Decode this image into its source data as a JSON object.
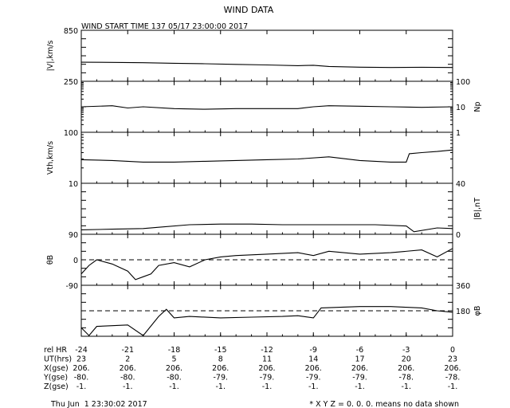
{
  "chart_data": {
    "type": "line",
    "title": "WIND DATA",
    "subtitle": "WIND START TIME 137 05/17 23:00:00 2017",
    "x": {
      "label": "rel HR",
      "ticks": [
        -24,
        -21,
        -18,
        -15,
        -12,
        -9,
        -6,
        -3,
        0
      ],
      "range": [
        -24,
        0
      ]
    },
    "panels": [
      {
        "name": "speed",
        "ylabel_left": "|V|,km/s",
        "left_ticks": [
          "850",
          "250"
        ],
        "right_ticks": [],
        "ylim": [
          250,
          850
        ],
        "scale": "linear",
        "series": {
          "x": [
            -24,
            -22,
            -20,
            -18,
            -16,
            -14,
            -12,
            -10,
            -9,
            -8,
            -6,
            -4,
            -2,
            0
          ],
          "y": [
            474,
            472,
            468,
            462,
            456,
            449,
            442,
            434,
            438,
            424,
            416,
            412,
            415,
            412
          ]
        }
      },
      {
        "name": "density",
        "ylabel_right": "Np",
        "left_ticks": [],
        "right_ticks": [
          "100",
          "10",
          "1"
        ],
        "ylim": [
          1,
          100
        ],
        "scale": "log",
        "series": {
          "x": [
            -24,
            -22,
            -21,
            -20,
            -18,
            -16,
            -14,
            -12,
            -10,
            -9,
            -8,
            -6,
            -4,
            -2,
            0
          ],
          "y": [
            10,
            11,
            9,
            10,
            8.5,
            8,
            8.5,
            8.5,
            8.5,
            10,
            11,
            10.5,
            10,
            9.5,
            10
          ]
        }
      },
      {
        "name": "thermal-speed",
        "ylabel_left": "Vth,km/s",
        "left_ticks": [
          "100",
          "10"
        ],
        "right_ticks": [],
        "ylim": [
          10,
          100
        ],
        "scale": "log",
        "series": {
          "x": [
            -24,
            -22,
            -20,
            -18,
            -16,
            -14,
            -12,
            -10,
            -8,
            -6,
            -4,
            -3,
            -2.8,
            -2,
            -1,
            0
          ],
          "y": [
            29,
            28,
            26,
            26,
            27,
            28,
            29,
            30,
            33,
            28,
            26,
            26,
            38,
            40,
            42,
            45
          ]
        }
      },
      {
        "name": "field-magnitude",
        "ylabel_right": "|B|,nT",
        "left_ticks": [],
        "right_ticks": [
          "40",
          "0"
        ],
        "ylim": [
          0,
          40
        ],
        "scale": "linear",
        "series": {
          "x": [
            -24,
            -22,
            -20,
            -19,
            -17,
            -15,
            -13,
            -11,
            -9,
            -7,
            -5,
            -3,
            -2.5,
            -1,
            0
          ],
          "y": [
            3.5,
            4,
            4.5,
            5.5,
            7.5,
            8,
            8,
            7.5,
            7.5,
            7.5,
            7.5,
            6.5,
            2,
            5,
            4.5
          ]
        }
      },
      {
        "name": "theta-b",
        "ylabel_left": "θB",
        "left_ticks": [
          "90",
          "0",
          "-90"
        ],
        "right_ticks": [],
        "ylim": [
          -90,
          90
        ],
        "scale": "linear",
        "reference_line": 0,
        "series": {
          "x": [
            -24,
            -23.5,
            -23,
            -22,
            -21,
            -20.5,
            -20,
            -19.5,
            -19,
            -18,
            -17,
            -16,
            -15,
            -14,
            -12,
            -10,
            -9,
            -8,
            -6,
            -4,
            -2,
            -1,
            0
          ],
          "y": [
            -50,
            -20,
            0,
            -15,
            -40,
            -70,
            -60,
            -50,
            -20,
            -10,
            -25,
            0,
            10,
            15,
            20,
            25,
            15,
            30,
            20,
            25,
            35,
            10,
            40
          ]
        }
      },
      {
        "name": "phi-b",
        "ylabel_right": "φB",
        "left_ticks": [],
        "right_ticks": [
          "360",
          "180"
        ],
        "ylim": [
          0,
          360
        ],
        "scale": "linear",
        "reference_line": 180,
        "series": {
          "x": [
            -24,
            -23.5,
            -23,
            -22,
            -21,
            -20,
            -19,
            -18.5,
            -18,
            -17,
            -15,
            -13,
            -11,
            -10,
            -9,
            -8.5,
            -6,
            -4,
            -3,
            -2,
            -1,
            0
          ],
          "y": [
            60,
            5,
            70,
            75,
            80,
            5,
            140,
            190,
            130,
            140,
            130,
            135,
            140,
            145,
            130,
            200,
            210,
            210,
            205,
            200,
            180,
            170
          ]
        }
      }
    ],
    "footer_rows": [
      {
        "label": "UT(hrs)",
        "values": [
          "23",
          "2",
          "5",
          "8",
          "11",
          "14",
          "17",
          "20",
          "23"
        ]
      },
      {
        "label": "X(gse)",
        "values": [
          "206.",
          "206.",
          "206.",
          "206.",
          "206.",
          "206.",
          "206.",
          "206.",
          "206."
        ]
      },
      {
        "label": "Y(gse)",
        "values": [
          "-80.",
          "-80.",
          "-80.",
          "-79.",
          "-79.",
          "-79.",
          "-79.",
          "-78.",
          "-78."
        ]
      },
      {
        "label": "Z(gse)",
        "values": [
          "-1.",
          "-1.",
          "-1.",
          "-1.",
          "-1.",
          "-1.",
          "-1.",
          "-1.",
          "-1."
        ]
      }
    ],
    "footer_left": "Thu Jun  1 23:30:02 2017",
    "footer_right": "* X Y Z = 0. 0. 0. means no data shown"
  }
}
